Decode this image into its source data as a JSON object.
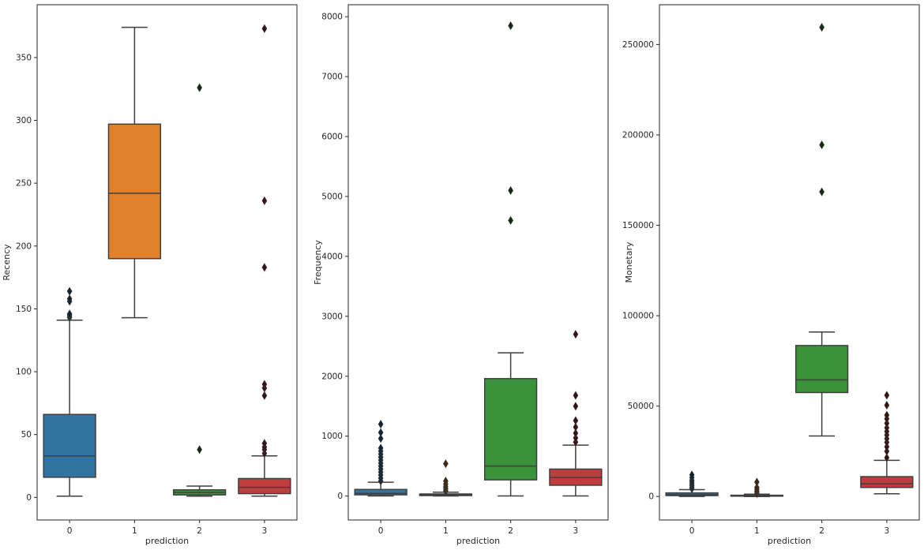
{
  "chart_data": [
    {
      "type": "box",
      "xlabel": "prediction",
      "ylabel": "Recency",
      "ylim": [
        -18,
        392
      ],
      "yticks": [
        0,
        50,
        100,
        150,
        200,
        250,
        300,
        350
      ],
      "categories": [
        "0",
        "1",
        "2",
        "3"
      ],
      "colors": [
        "#3274a1",
        "#e1812c",
        "#3a923a",
        "#c03d3e"
      ],
      "boxes": [
        {
          "category": "0",
          "whisker_low": 1,
          "q1": 16,
          "median": 33,
          "q3": 66,
          "whisker_high": 141,
          "outliers": [
            143,
            144,
            145,
            146,
            156,
            158,
            164
          ]
        },
        {
          "category": "1",
          "whisker_low": 143,
          "q1": 190,
          "median": 242,
          "q3": 297,
          "whisker_high": 374,
          "outliers": []
        },
        {
          "category": "2",
          "whisker_low": 1,
          "q1": 2,
          "median": 4,
          "q3": 6,
          "whisker_high": 9,
          "outliers": [
            38,
            326
          ]
        },
        {
          "category": "3",
          "whisker_low": 1,
          "q1": 3,
          "median": 8,
          "q3": 15,
          "whisker_high": 33,
          "outliers": [
            35,
            38,
            40,
            43,
            81,
            87,
            90,
            183,
            236,
            373
          ]
        }
      ]
    },
    {
      "type": "box",
      "xlabel": "prediction",
      "ylabel": "Frequency",
      "ylim": [
        -400,
        8200
      ],
      "yticks": [
        0,
        1000,
        2000,
        3000,
        4000,
        5000,
        6000,
        7000,
        8000
      ],
      "categories": [
        "0",
        "1",
        "2",
        "3"
      ],
      "colors": [
        "#3274a1",
        "#e1812c",
        "#3a923a",
        "#c03d3e"
      ],
      "boxes": [
        {
          "category": "0",
          "whisker_low": 1,
          "q1": 20,
          "median": 45,
          "q3": 110,
          "whisker_high": 230,
          "outliers": [
            250,
            300,
            350,
            400,
            450,
            500,
            550,
            600,
            650,
            700,
            750,
            800,
            960,
            1060,
            1200
          ]
        },
        {
          "category": "1",
          "whisker_low": 1,
          "q1": 8,
          "median": 18,
          "q3": 35,
          "whisker_high": 65,
          "outliers": [
            80,
            100,
            130,
            160,
            200,
            250,
            540
          ]
        },
        {
          "category": "2",
          "whisker_low": 1,
          "q1": 270,
          "median": 500,
          "q3": 1960,
          "whisker_high": 2390,
          "outliers": [
            4600,
            5100,
            7850
          ]
        },
        {
          "category": "3",
          "whisker_low": 1,
          "q1": 180,
          "median": 310,
          "q3": 450,
          "whisker_high": 850,
          "outliers": [
            900,
            970,
            1050,
            1150,
            1260,
            1500,
            1680,
            2700
          ]
        }
      ]
    },
    {
      "type": "box",
      "xlabel": "prediction",
      "ylabel": "Monetary",
      "ylim": [
        -13000,
        272000
      ],
      "yticks": [
        0,
        50000,
        100000,
        150000,
        200000,
        250000
      ],
      "categories": [
        "0",
        "1",
        "2",
        "3"
      ],
      "colors": [
        "#3274a1",
        "#e1812c",
        "#3a923a",
        "#c03d3e"
      ],
      "boxes": [
        {
          "category": "0",
          "whisker_low": 50,
          "q1": 500,
          "median": 1000,
          "q3": 2000,
          "whisker_high": 3800,
          "outliers": [
            4200,
            5000,
            6000,
            7000,
            8000,
            9000,
            10500,
            12000
          ]
        },
        {
          "category": "1",
          "whisker_low": 10,
          "q1": 200,
          "median": 400,
          "q3": 700,
          "whisker_high": 1300,
          "outliers": [
            1600,
            2200,
            3000,
            4000,
            5000,
            8000
          ]
        },
        {
          "category": "2",
          "whisker_low": 33500,
          "q1": 57500,
          "median": 64500,
          "q3": 83500,
          "whisker_high": 91000,
          "outliers": [
            168500,
            194500,
            259500
          ]
        },
        {
          "category": "3",
          "whisker_low": 1500,
          "q1": 5000,
          "median": 7000,
          "q3": 11000,
          "whisker_high": 20000,
          "outliers": [
            21500,
            25000,
            27500,
            30000,
            32000,
            34000,
            36000,
            38000,
            40500,
            43000,
            45000,
            50500,
            56000
          ]
        }
      ]
    }
  ]
}
